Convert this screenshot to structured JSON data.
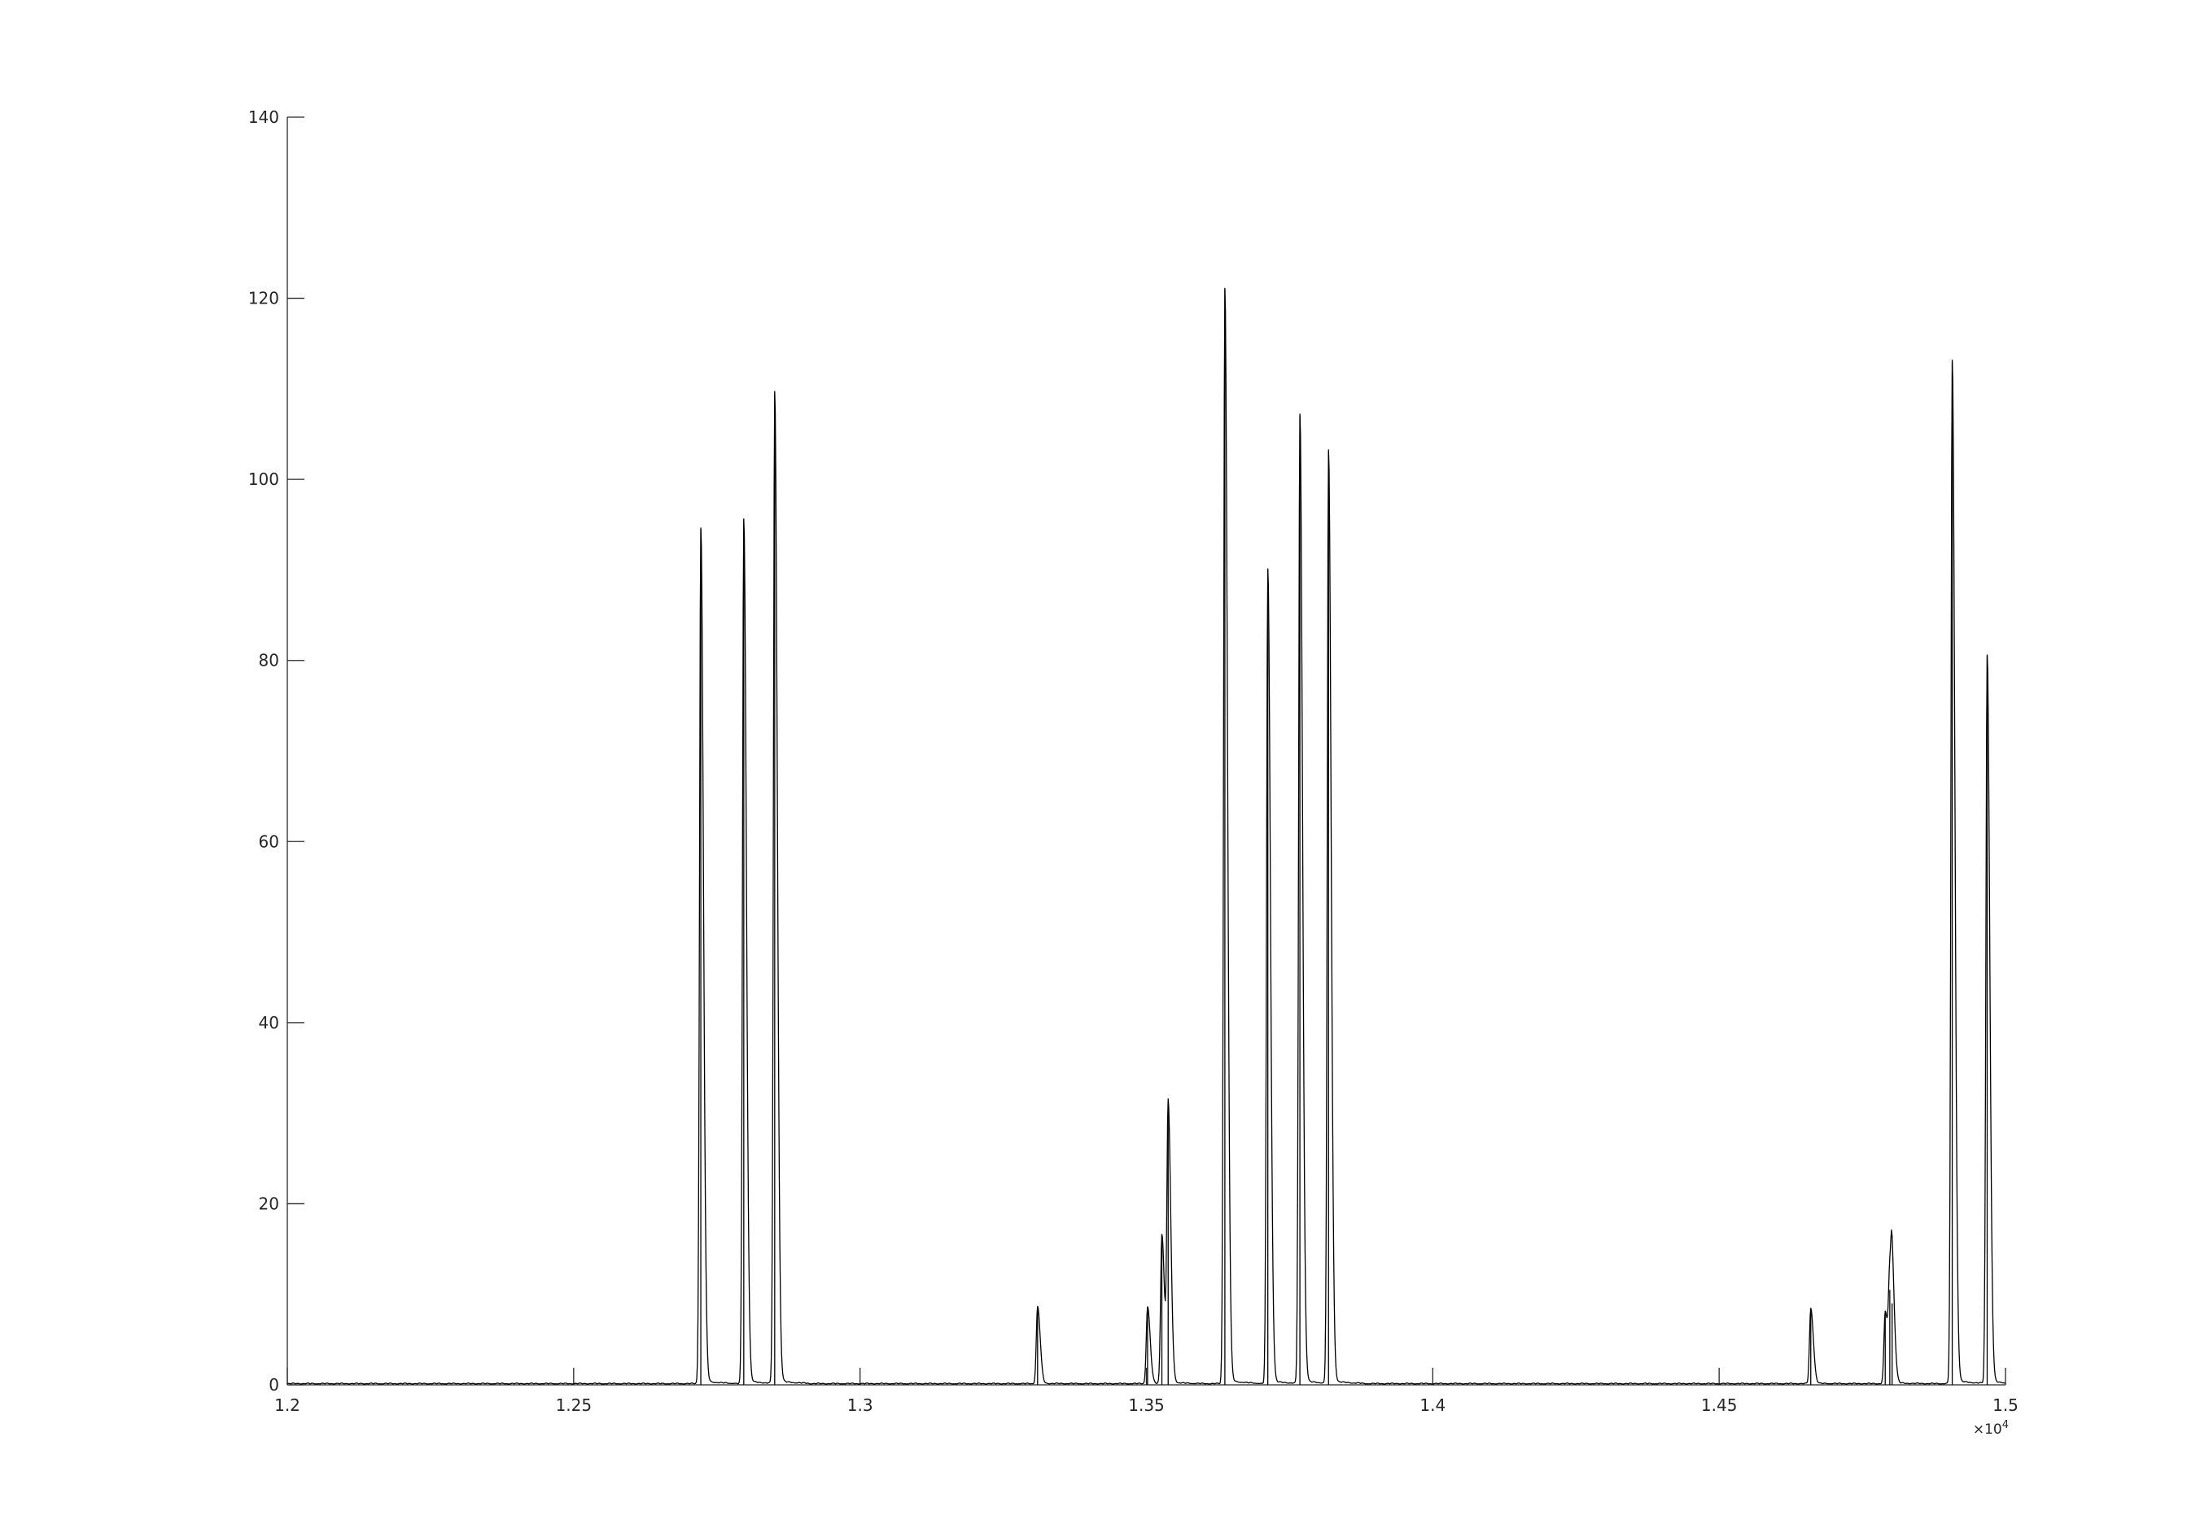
{
  "chart_data": {
    "type": "line",
    "title": "",
    "xlabel": "",
    "ylabel": "",
    "xlim": [
      12000,
      15000
    ],
    "ylim": [
      0,
      140
    ],
    "x_exponent_label": "×10",
    "x_exponent_power": "4",
    "x_ticks": [
      12000,
      12500,
      13000,
      13500,
      14000,
      14500,
      15000
    ],
    "x_tick_labels": [
      "1.2",
      "1.25",
      "1.3",
      "1.35",
      "1.4",
      "1.45",
      "1.5"
    ],
    "y_ticks": [
      0,
      20,
      40,
      60,
      80,
      100,
      120,
      140
    ],
    "y_tick_labels": [
      "0",
      "20",
      "40",
      "60",
      "80",
      "100",
      "120",
      "140"
    ],
    "grid": false,
    "legend": "none",
    "line_color": "#000000",
    "axis_color": "#262626",
    "baseline": 0.2,
    "series": [
      {
        "peaks": [
          {
            "x": 12722,
            "y": 94.5
          },
          {
            "x": 12797,
            "y": 95.5
          },
          {
            "x": 12851,
            "y": 109.5
          },
          {
            "x": 13310,
            "y": 8.5
          },
          {
            "x": 13502,
            "y": 8.5
          },
          {
            "x": 13527,
            "y": 16.5
          },
          {
            "x": 13538,
            "y": 30.5
          },
          {
            "x": 13637,
            "y": 121.0
          },
          {
            "x": 13712,
            "y": 90.0
          },
          {
            "x": 13768,
            "y": 107.0
          },
          {
            "x": 13818,
            "y": 103.0
          },
          {
            "x": 14660,
            "y": 8.3
          },
          {
            "x": 14790,
            "y": 8.0
          },
          {
            "x": 14798,
            "y": 10.5
          },
          {
            "x": 14802,
            "y": 9.0
          },
          {
            "x": 14907,
            "y": 113.0
          },
          {
            "x": 14968,
            "y": 80.5
          }
        ]
      }
    ]
  }
}
